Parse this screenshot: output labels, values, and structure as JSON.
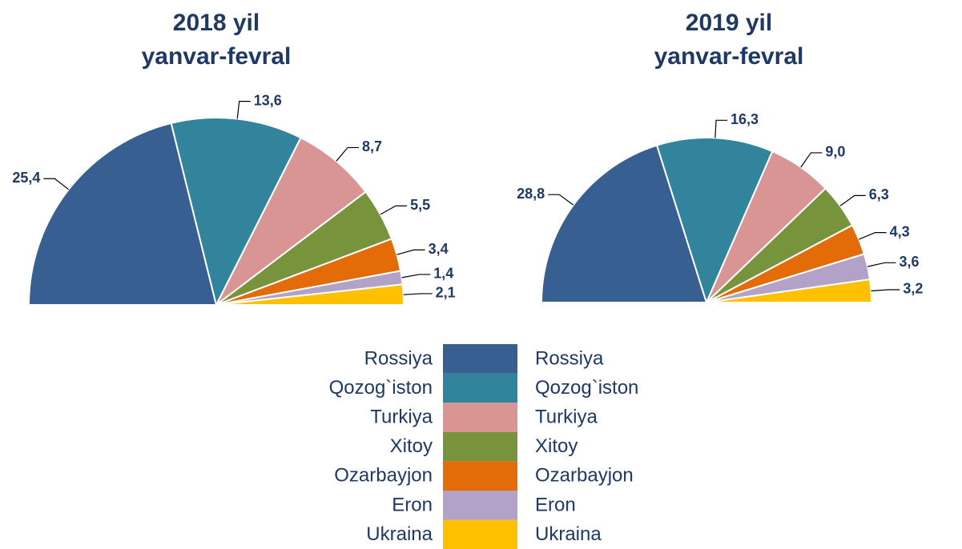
{
  "chart_data": [
    {
      "type": "pie",
      "half": true,
      "title": [
        "2018 yil",
        "yanvar-fevral"
      ],
      "categories": [
        "Rossiya",
        "Qozog`iston",
        "Turkiya",
        "Xitoy",
        "Ozarbayjon",
        "Eron",
        "Ukraina"
      ],
      "values": [
        25.4,
        13.6,
        8.7,
        5.5,
        3.4,
        1.4,
        2.1
      ],
      "value_labels": [
        "25,4",
        "13,6",
        "8,7",
        "5,5",
        "3,4",
        "1,4",
        "2,1"
      ],
      "colors": [
        "#375f92",
        "#31849b",
        "#d99594",
        "#77933c",
        "#e36c09",
        "#b2a2c7",
        "#ffc000"
      ]
    },
    {
      "type": "pie",
      "half": true,
      "title": [
        "2019 yil",
        "yanvar-fevral"
      ],
      "categories": [
        "Rossiya",
        "Qozog`iston",
        "Turkiya",
        "Xitoy",
        "Ozarbayjon",
        "Eron",
        "Ukraina"
      ],
      "values": [
        28.8,
        16.3,
        9.0,
        6.3,
        4.3,
        3.6,
        3.2
      ],
      "value_labels": [
        "28,8",
        "16,3",
        "9,0",
        "6,3",
        "4,3",
        "3,6",
        "3,2"
      ],
      "colors": [
        "#375f92",
        "#31849b",
        "#d99594",
        "#77933c",
        "#e36c09",
        "#b2a2c7",
        "#ffc000"
      ]
    }
  ]
}
